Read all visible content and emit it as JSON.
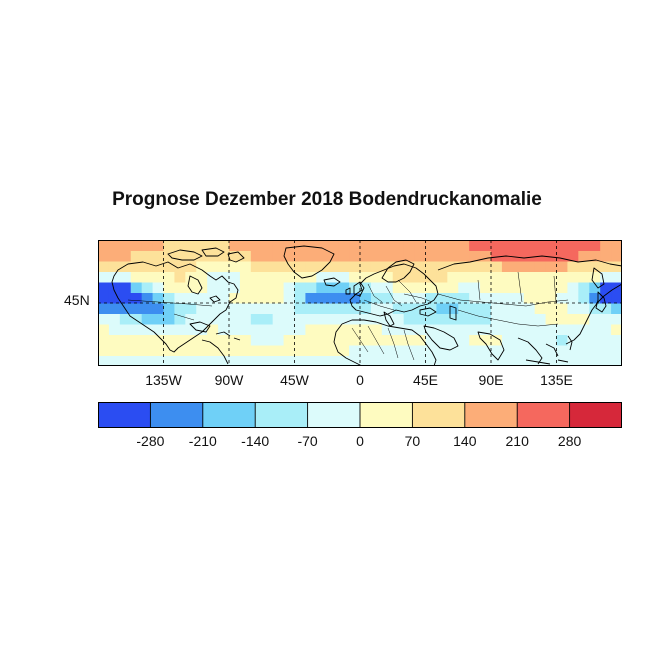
{
  "title": "Prognose Dezember 2018 Bodendruckanomalie",
  "map": {
    "lon_ticks": [
      "135W",
      "90W",
      "45W",
      "0",
      "45E",
      "90E",
      "135E"
    ],
    "lat_ticks": [
      "45N"
    ],
    "projection": "cylindrical",
    "lon_range": [
      -180,
      180
    ],
    "lat_range": [
      0,
      90
    ],
    "gridlines": "dashed"
  },
  "colorbar": {
    "labels": [
      "-280",
      "-210",
      "-140",
      "-70",
      "0",
      "70",
      "140",
      "210",
      "280"
    ],
    "colors": [
      "#2b4df2",
      "#3d8ef0",
      "#6fd0f7",
      "#a9eef8",
      "#dcfbfb",
      "#fefbc0",
      "#fde19a",
      "#fcad78",
      "#f5685e",
      "#d6283a"
    ]
  },
  "chart_data": {
    "type": "heatmap",
    "title": "Prognose Dezember 2018 Bodendruckanomalie",
    "xlabel": "",
    "ylabel": "",
    "x_tick_labels": [
      "135W",
      "90W",
      "45W",
      "0",
      "45E",
      "90E",
      "135E"
    ],
    "y_tick_labels": [
      "45N"
    ],
    "xlim": [
      -180,
      180
    ],
    "ylim": [
      0,
      90
    ],
    "grid": true,
    "colorbar_levels": [
      -280,
      -210,
      -140,
      -70,
      0,
      70,
      140,
      210,
      280
    ],
    "colors": [
      "#2b4df2",
      "#3d8ef0",
      "#6fd0f7",
      "#a9eef8",
      "#dcfbfb",
      "#fefbc0",
      "#fde19a",
      "#fcad78",
      "#f5685e",
      "#d6283a"
    ]
  }
}
